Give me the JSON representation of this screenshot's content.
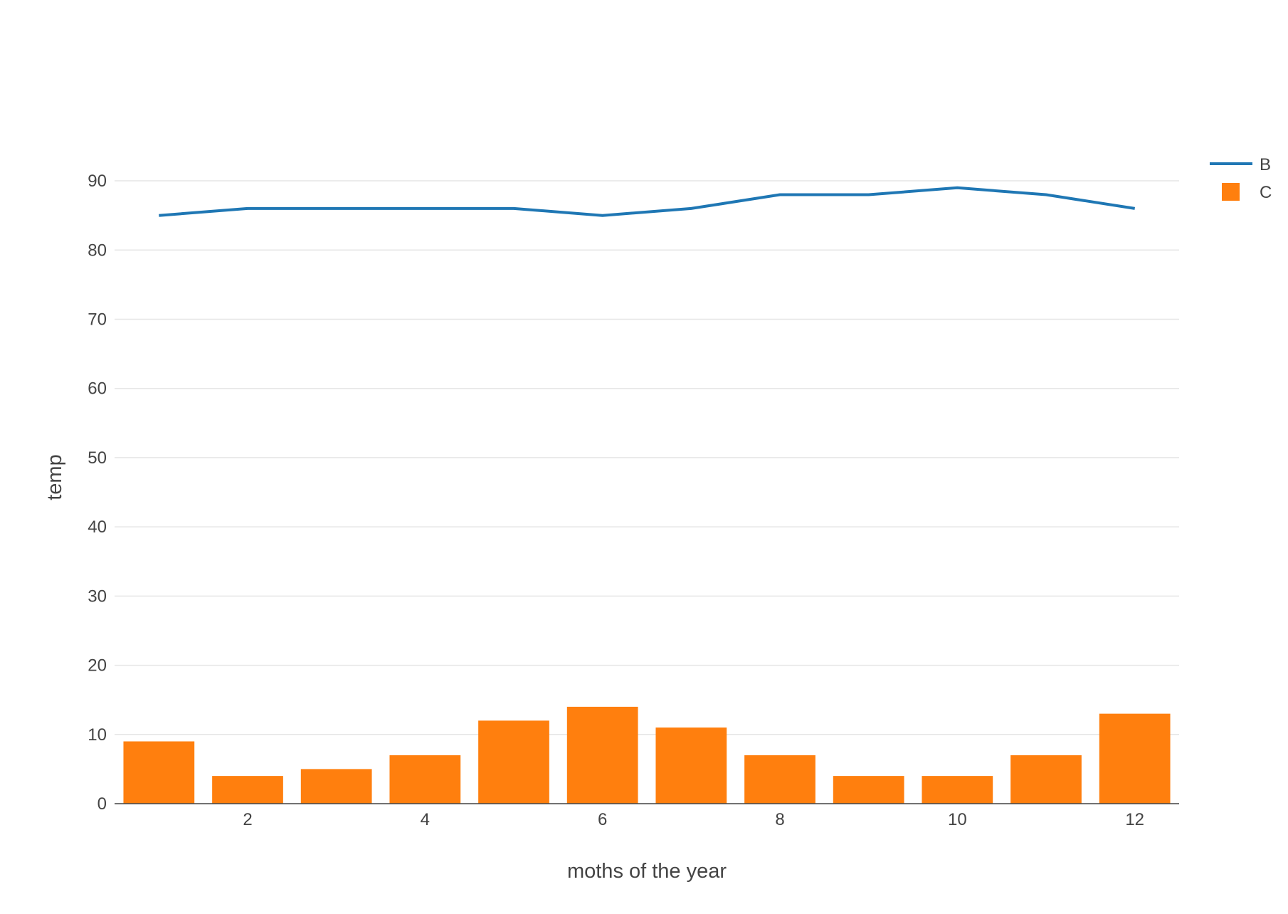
{
  "chart_data": {
    "type": "bar",
    "title": "",
    "xlabel": "moths of the year",
    "ylabel": "temp",
    "xlim": [
      0.5,
      12.5
    ],
    "ylim": [
      0,
      97
    ],
    "x_ticks": [
      2,
      4,
      6,
      8,
      10,
      12
    ],
    "y_ticks": [
      0,
      10,
      20,
      30,
      40,
      50,
      60,
      70,
      80,
      90
    ],
    "grid": true,
    "legend_position": "top-right",
    "x": [
      1,
      2,
      3,
      4,
      5,
      6,
      7,
      8,
      9,
      10,
      11,
      12
    ],
    "series": [
      {
        "name": "B",
        "type": "line",
        "color": "#1f77b4",
        "values": [
          85,
          86,
          86,
          86,
          86,
          85,
          86,
          88,
          88,
          89,
          88,
          86
        ]
      },
      {
        "name": "C",
        "type": "bar",
        "color": "#ff7f0e",
        "values": [
          9,
          4,
          5,
          7,
          12,
          14,
          11,
          7,
          4,
          4,
          7,
          13
        ]
      }
    ]
  }
}
